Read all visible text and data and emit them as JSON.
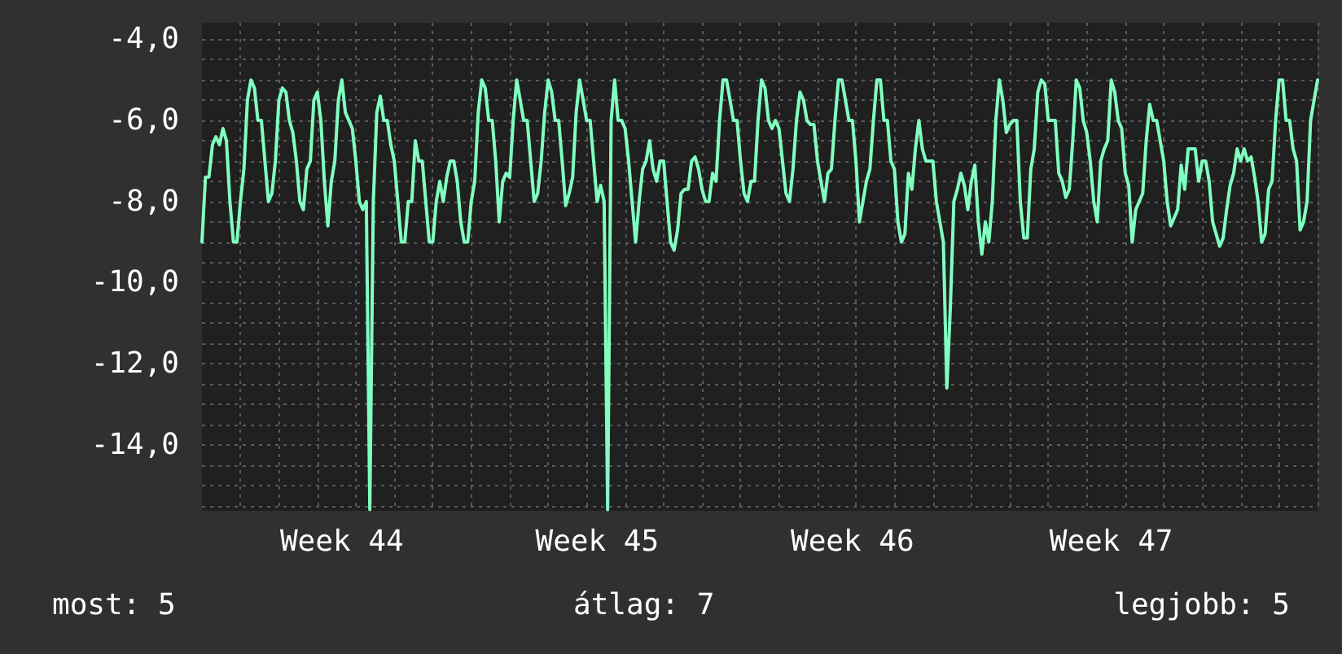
{
  "chart_data": {
    "type": "line",
    "grid": true,
    "marker": "none",
    "line_style": "solid",
    "annotations": [
      "most: 5",
      "átlag: 7",
      "legjobb: 5"
    ],
    "categories": [
      null,
      null,
      null,
      null,
      null,
      null,
      null,
      null,
      null,
      null,
      null,
      null,
      null,
      null,
      null,
      null,
      null,
      null,
      null,
      null,
      null,
      null,
      null,
      null,
      null,
      null,
      null,
      null,
      null,
      null,
      null,
      null,
      null,
      null,
      null,
      null,
      null,
      null,
      null,
      null,
      "Week 44",
      null,
      null,
      null,
      null,
      null,
      null,
      null,
      null,
      null,
      null,
      null,
      null,
      null,
      null,
      null,
      null,
      null,
      null,
      null,
      null,
      null,
      null,
      null,
      null,
      null,
      null,
      null,
      null,
      null,
      null,
      null,
      null,
      null,
      null,
      null,
      null,
      null,
      null,
      null,
      null,
      null,
      null,
      null,
      null,
      null,
      null,
      null,
      null,
      null,
      null,
      null,
      null,
      null,
      null,
      null,
      null,
      null,
      null,
      null,
      null,
      null,
      null,
      null,
      null,
      null,
      null,
      null,
      null,
      null,
      null,
      null,
      null,
      "Week 45",
      null,
      null,
      null,
      null,
      null,
      null,
      null,
      null,
      null,
      null,
      null,
      null,
      null,
      null,
      null,
      null,
      null,
      null,
      null,
      null,
      null,
      null,
      null,
      null,
      null,
      null,
      null,
      null,
      null,
      null,
      null,
      null,
      null,
      null,
      null,
      null,
      null,
      null,
      null,
      null,
      null,
      null,
      null,
      null,
      null,
      null,
      null,
      null,
      null,
      null,
      null,
      null,
      null,
      null,
      null,
      null,
      null,
      null,
      null,
      null,
      null,
      null,
      null,
      null,
      null,
      null,
      null,
      null,
      null,
      null,
      null,
      null,
      "Week 46",
      null,
      null,
      null,
      null,
      null,
      null,
      null,
      null,
      null,
      null,
      null,
      null,
      null,
      null,
      null,
      null,
      null,
      null,
      null,
      null,
      null,
      null,
      null,
      null,
      null,
      null,
      null,
      null,
      null,
      null,
      null,
      null,
      null,
      null,
      null,
      null,
      null,
      null,
      null,
      null,
      null,
      null,
      null,
      null,
      null,
      null,
      null,
      null,
      null,
      null,
      null,
      null,
      null,
      null,
      null,
      null,
      null,
      null,
      null,
      null,
      null,
      null,
      null,
      null,
      null,
      null,
      null,
      null,
      null,
      null,
      null,
      null,
      null,
      "Week 47",
      null,
      null,
      null,
      null,
      null,
      null,
      null,
      null,
      null,
      null,
      null,
      null,
      null,
      null,
      null,
      null,
      null,
      null,
      null,
      null,
      null,
      null,
      null,
      null,
      null,
      null,
      null,
      null,
      null,
      null,
      null,
      null,
      null,
      null,
      null,
      null,
      null,
      null,
      null,
      null,
      null,
      null,
      null,
      null,
      null,
      null,
      null,
      null,
      null,
      null,
      null,
      null,
      null,
      null,
      null,
      null,
      null,
      null,
      null
    ],
    "ylim": [
      -15.63,
      -3.59
    ],
    "yticks": [
      {
        "value": -4,
        "label": "-4,0"
      },
      {
        "value": -4.5,
        "label": null
      },
      {
        "value": -5,
        "label": null
      },
      {
        "value": -5.5,
        "label": null
      },
      {
        "value": -6,
        "label": "-6,0"
      },
      {
        "value": -6.5,
        "label": null
      },
      {
        "value": -7,
        "label": null
      },
      {
        "value": -7.5,
        "label": null
      },
      {
        "value": -8,
        "label": "-8,0"
      },
      {
        "value": -8.5,
        "label": null
      },
      {
        "value": -9,
        "label": null
      },
      {
        "value": -9.5,
        "label": null
      },
      {
        "value": -10,
        "label": "-10,0"
      },
      {
        "value": -10.5,
        "label": null
      },
      {
        "value": -11,
        "label": null
      },
      {
        "value": -11.5,
        "label": null
      },
      {
        "value": -12,
        "label": "-12,0"
      },
      {
        "value": -12.5,
        "label": null
      },
      {
        "value": -13,
        "label": null
      },
      {
        "value": -13.5,
        "label": null
      },
      {
        "value": -14,
        "label": "-14,0"
      },
      {
        "value": -14.5,
        "label": null
      },
      {
        "value": -15,
        "label": null
      },
      {
        "value": -15.5,
        "label": null
      }
    ],
    "series": [
      {
        "color": "#80ffc0",
        "values": [
          -9,
          -7.4,
          -7.4,
          -6.6,
          -6.4,
          -6.6,
          -6.2,
          -6.5,
          -8,
          -9,
          -9,
          -8,
          -7.2,
          -5.5,
          -5,
          -5.2,
          -6,
          -6,
          -7,
          -8,
          -7.8,
          -7,
          -5.5,
          -5.2,
          -5.3,
          -6,
          -6.3,
          -7,
          -8,
          -8.2,
          -7.2,
          -7,
          -5.5,
          -5.3,
          -6,
          -7.5,
          -8.6,
          -7.5,
          -7,
          -5.5,
          -5,
          -5.8,
          -6,
          -6.2,
          -7,
          -8,
          -8.2,
          -8,
          -15.6,
          -8,
          -5.8,
          -5.4,
          -6,
          -6,
          -6.6,
          -7,
          -8,
          -9,
          -9,
          -8,
          -8,
          -6.5,
          -7,
          -7,
          -8,
          -9,
          -9,
          -8,
          -7.5,
          -8,
          -7.4,
          -7,
          -7,
          -7.5,
          -8.5,
          -9,
          -9,
          -8,
          -7.5,
          -5.8,
          -5,
          -5.2,
          -6,
          -6,
          -7,
          -8.5,
          -7.5,
          -7.3,
          -7.4,
          -6,
          -5,
          -5.5,
          -6,
          -6,
          -7,
          -8,
          -7.8,
          -7,
          -5.8,
          -5,
          -5.3,
          -6,
          -6,
          -7,
          -8.1,
          -7.8,
          -7.4,
          -5.8,
          -5,
          -5.5,
          -6,
          -6,
          -7,
          -8,
          -7.6,
          -8,
          -15.6,
          -6,
          -5,
          -6,
          -6,
          -6.2,
          -7,
          -8,
          -9,
          -8,
          -7.2,
          -7,
          -6.5,
          -7.2,
          -7.5,
          -7,
          -7,
          -8,
          -9,
          -9.2,
          -8.7,
          -7.8,
          -7.7,
          -7.7,
          -7,
          -6.9,
          -7.2,
          -7.7,
          -8,
          -8,
          -7.3,
          -7.5,
          -6,
          -5,
          -5,
          -5.5,
          -6,
          -6,
          -7,
          -7.8,
          -8,
          -7.5,
          -7.5,
          -6,
          -5,
          -5.2,
          -6,
          -6.2,
          -6,
          -6.2,
          -7,
          -7.8,
          -8,
          -7.2,
          -6,
          -5.3,
          -5.5,
          -6,
          -6.1,
          -6.1,
          -7,
          -7.5,
          -8,
          -7.3,
          -7.2,
          -6,
          -5,
          -5,
          -5.5,
          -6,
          -6,
          -7,
          -8.5,
          -8,
          -7.5,
          -7.2,
          -6,
          -5,
          -5,
          -6,
          -6,
          -7,
          -7.2,
          -8.5,
          -9,
          -8.8,
          -7.3,
          -7.7,
          -6.7,
          -6,
          -6.7,
          -7,
          -7,
          -7,
          -8,
          -8.5,
          -9,
          -12.6,
          -10.6,
          -8,
          -7.7,
          -7.3,
          -7.6,
          -8.2,
          -7.5,
          -7.1,
          -8.5,
          -9.3,
          -8.5,
          -9,
          -8,
          -6,
          -5,
          -5.5,
          -6.3,
          -6.1,
          -6,
          -6,
          -8,
          -8.9,
          -8.9,
          -7.2,
          -6.7,
          -5.3,
          -5,
          -5.1,
          -6,
          -6,
          -6,
          -7.3,
          -7.5,
          -7.9,
          -7.7,
          -6.5,
          -5,
          -5.2,
          -6,
          -6.3,
          -7,
          -8,
          -8.5,
          -7,
          -6.7,
          -6.5,
          -5,
          -5.3,
          -6,
          -6.2,
          -7.3,
          -7.6,
          -9,
          -8.2,
          -8,
          -7.8,
          -6.5,
          -5.6,
          -6,
          -6,
          -6.5,
          -7,
          -8,
          -8.6,
          -8.4,
          -8.2,
          -7.1,
          -7.7,
          -6.7,
          -6.7,
          -6.7,
          -7.5,
          -7,
          -7,
          -7.5,
          -8.5,
          -8.8,
          -9.1,
          -8.9,
          -8.2,
          -7.6,
          -7.3,
          -6.7,
          -7,
          -6.7,
          -7,
          -6.9,
          -7.4,
          -8,
          -9,
          -8.8,
          -7.7,
          -7.5,
          -6,
          -5,
          -5,
          -6,
          -6,
          -6.7,
          -7,
          -8.7,
          -8.5,
          -8,
          -6,
          -5.5,
          -5
        ]
      }
    ]
  }
}
